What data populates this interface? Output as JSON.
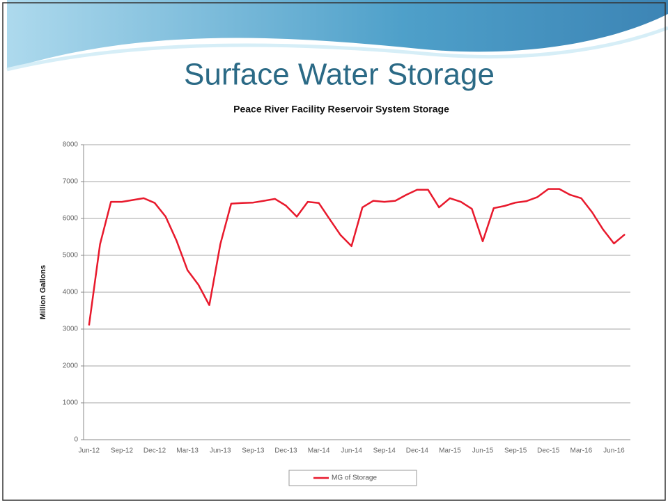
{
  "slide_title": "Surface Water Storage",
  "chart_data": {
    "type": "line",
    "title": "Peace River Facility Reservoir System Storage",
    "y_label": "Million Gallons",
    "categories": [
      "Jun-12",
      null,
      null,
      "Sep-12",
      null,
      null,
      "Dec-12",
      null,
      null,
      "Mar-13",
      null,
      null,
      "Jun-13",
      null,
      null,
      "Sep-13",
      null,
      null,
      "Dec-13",
      null,
      null,
      "Mar-14",
      null,
      null,
      "Jun-14",
      null,
      null,
      "Sep-14",
      null,
      null,
      "Dec-14",
      null,
      null,
      "Mar-15",
      null,
      null,
      "Jun-15",
      null,
      null,
      "Sep-15",
      null,
      null,
      "Dec-15",
      null,
      null,
      "Mar-16",
      null,
      null,
      "Jun-16",
      null
    ],
    "series": [
      {
        "name": "MG of Storage",
        "color": "#e8192c",
        "values": [
          3100,
          5300,
          6450,
          6450,
          6500,
          6550,
          6420,
          6050,
          5400,
          4600,
          4200,
          3650,
          5300,
          6400,
          6420,
          6430,
          6480,
          6530,
          6350,
          6050,
          6450,
          6420,
          5980,
          5550,
          5250,
          6300,
          6480,
          6450,
          6480,
          6640,
          6780,
          6780,
          6300,
          6550,
          6450,
          6260,
          5380,
          6280,
          6340,
          6430,
          6470,
          6580,
          6800,
          6800,
          6640,
          6550,
          6170,
          5700,
          5320,
          5570
        ]
      }
    ],
    "ylim": [
      0,
      8000
    ],
    "yticks": [
      0,
      1000,
      2000,
      3000,
      4000,
      5000,
      6000,
      7000,
      8000
    ],
    "grid": true,
    "legend": "bottom"
  }
}
